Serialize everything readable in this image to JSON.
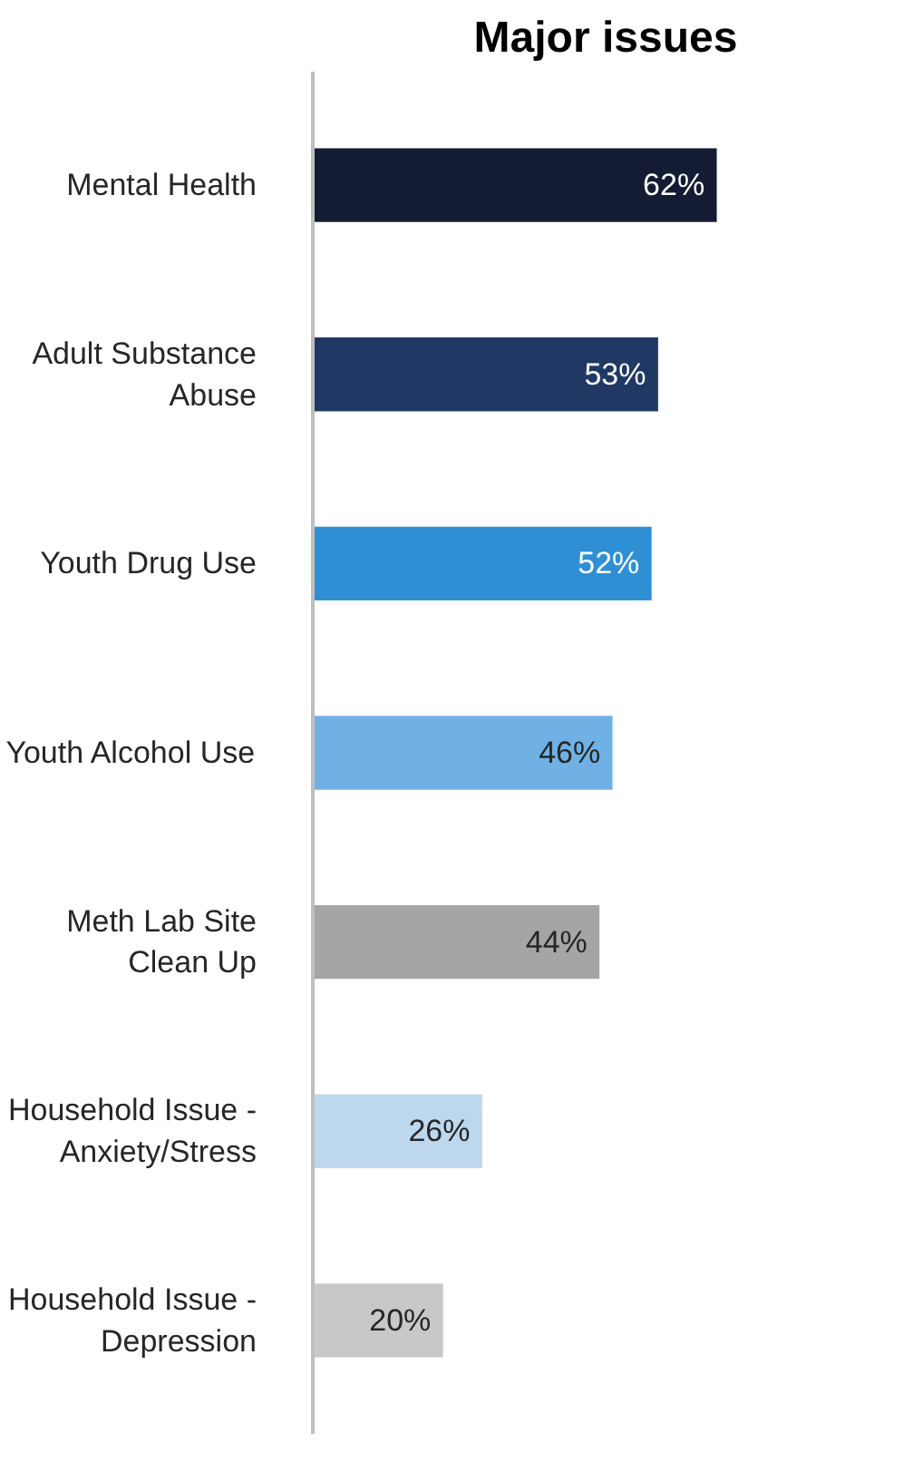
{
  "chart_data": {
    "type": "bar",
    "orientation": "horizontal",
    "title": "Major issues",
    "categories": [
      "Mental Health",
      "Adult Substance Abuse",
      "Youth Drug Use",
      "Youth Alcohol Use",
      "Meth Lab Site Clean Up",
      "Household Issue - Anxiety/Stress",
      "Household Issue - Depression"
    ],
    "values": [
      62,
      53,
      52,
      46,
      44,
      26,
      20
    ],
    "colors": [
      "#141c33",
      "#1f3864",
      "#2e8fd4",
      "#6fb1e4",
      "#a5a5a5",
      "#bdd7ee",
      "#c8c8c8"
    ],
    "value_labels": [
      "62%",
      "53%",
      "52%",
      "46%",
      "44%",
      "26%",
      "20%"
    ],
    "grid": false
  }
}
